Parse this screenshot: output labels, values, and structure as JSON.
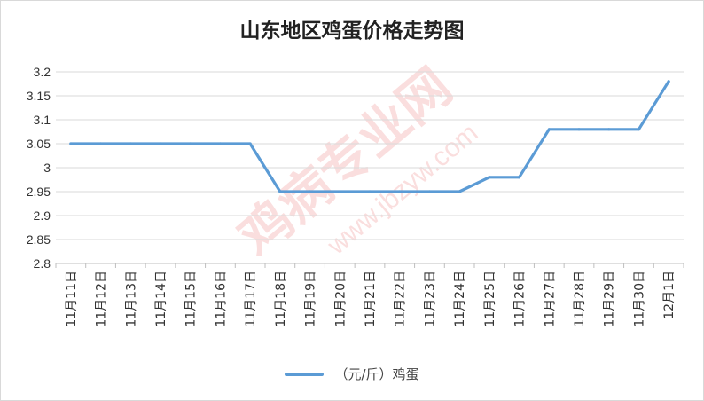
{
  "colors": {
    "series": "#5b9bd5",
    "grid": "#d9d9d9",
    "watermark": "#e8504d"
  },
  "chart_data": {
    "type": "line",
    "title": "山东地区鸡蛋价格走势图",
    "xlabel": "",
    "ylabel": "",
    "ylim": [
      2.8,
      3.2
    ],
    "yticks": [
      "3.2",
      "3.15",
      "3.1",
      "3.05",
      "3",
      "2.95",
      "2.9",
      "2.85",
      "2.8"
    ],
    "grid": true,
    "legend_position": "bottom",
    "categories": [
      "11月11日",
      "11月12日",
      "11月13日",
      "11月14日",
      "11月15日",
      "11月16日",
      "11月17日",
      "11月18日",
      "11月19日",
      "11月20日",
      "11月21日",
      "11月22日",
      "11月23日",
      "11月24日",
      "11月25日",
      "11月26日",
      "11月27日",
      "11月28日",
      "11月29日",
      "11月30日",
      "12月1日"
    ],
    "series": [
      {
        "name": "（元/斤）鸡蛋",
        "values": [
          3.05,
          3.05,
          3.05,
          3.05,
          3.05,
          3.05,
          3.05,
          2.95,
          2.95,
          2.95,
          2.95,
          2.95,
          2.95,
          2.95,
          2.98,
          2.98,
          3.08,
          3.08,
          3.08,
          3.08,
          3.18
        ]
      }
    ]
  },
  "watermark": {
    "text": "鸡病专业网",
    "url": "www.jbzyw.com"
  }
}
